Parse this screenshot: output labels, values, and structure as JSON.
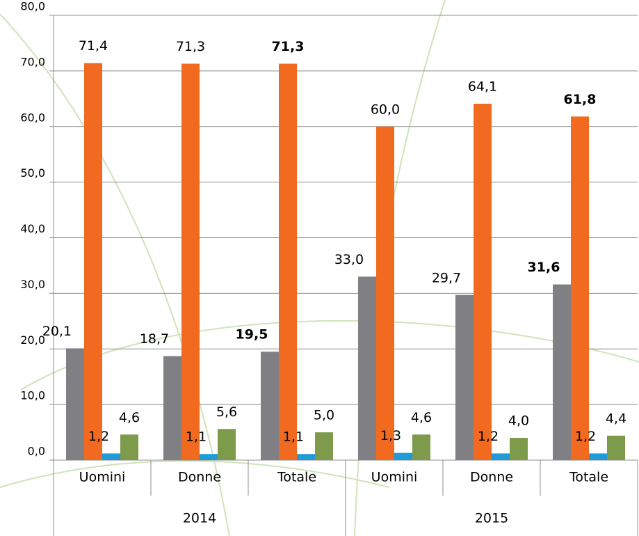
{
  "chart_data": {
    "type": "bar",
    "categories": [
      "Uomini",
      "Donne",
      "Totale",
      "Uomini",
      "Donne",
      "Totale"
    ],
    "groups": [
      "2014",
      "2015"
    ],
    "ylim": [
      0,
      80
    ],
    "yticks": [
      {
        "value": 0,
        "label": "0,0"
      },
      {
        "value": 10,
        "label": "10,0"
      },
      {
        "value": 20,
        "label": "20,0"
      },
      {
        "value": 30,
        "label": "30,0"
      },
      {
        "value": 40,
        "label": "40,0"
      },
      {
        "value": 50,
        "label": "50,0"
      },
      {
        "value": 60,
        "label": "60,0"
      },
      {
        "value": 70,
        "label": "70,0"
      },
      {
        "value": 80,
        "label": "80,0"
      }
    ],
    "grid": true,
    "series": [
      {
        "color": "#7f7f84",
        "values": [
          20.1,
          18.7,
          19.5,
          33.0,
          29.7,
          31.6
        ],
        "value_labels": [
          "20,1",
          "18,7",
          "19,5",
          "33,0",
          "29,7",
          "31,6"
        ],
        "bold": [
          false,
          false,
          true,
          false,
          false,
          true
        ]
      },
      {
        "color": "#f26a1f",
        "values": [
          71.4,
          71.3,
          71.3,
          60.0,
          64.1,
          61.8
        ],
        "value_labels": [
          "71,4",
          "71,3",
          "71,3",
          "60,0",
          "64,1",
          "61,8"
        ],
        "bold": [
          false,
          false,
          true,
          false,
          false,
          true
        ]
      },
      {
        "color": "#1f9bd7",
        "values": [
          1.2,
          1.1,
          1.1,
          1.3,
          1.2,
          1.2
        ],
        "value_labels": [
          "1,2",
          "1,1",
          "1,1",
          "1,3",
          "1,2",
          "1,2"
        ]
      },
      {
        "color": "#7d9b4a",
        "values": [
          4.6,
          5.6,
          5.0,
          4.6,
          4.0,
          4.4
        ],
        "value_labels": [
          "4,6",
          "5,6",
          "5,0",
          "4,6",
          "4,0",
          "4,4"
        ]
      }
    ]
  }
}
